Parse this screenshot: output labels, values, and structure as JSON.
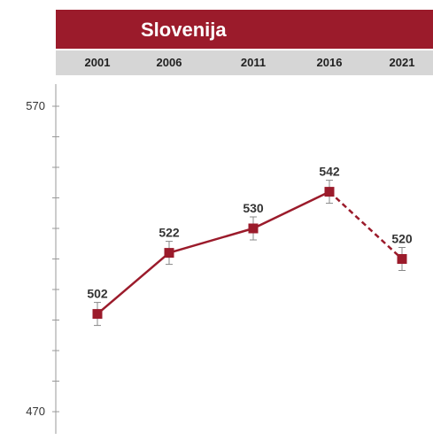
{
  "chart_data": {
    "type": "line",
    "title": "Slovenija",
    "categories": [
      "2001",
      "2006",
      "2011",
      "2016",
      "2021"
    ],
    "series": [
      {
        "values": [
          502,
          522,
          530,
          542,
          520
        ]
      }
    ],
    "data_labels": [
      "502",
      "522",
      "530",
      "542",
      "520"
    ],
    "segment_styles": [
      "solid",
      "solid",
      "solid",
      "dashed"
    ],
    "y_ticks": [
      {
        "value": 570,
        "label": "570"
      },
      {
        "value": 470,
        "label": "470"
      }
    ],
    "ylim": [
      470,
      570
    ],
    "line_color": "#9b1b2b",
    "header_color": "#9b1b2b",
    "year_band_color": "#d6d6d6",
    "error_bar_color": "#888888",
    "grid": false
  }
}
